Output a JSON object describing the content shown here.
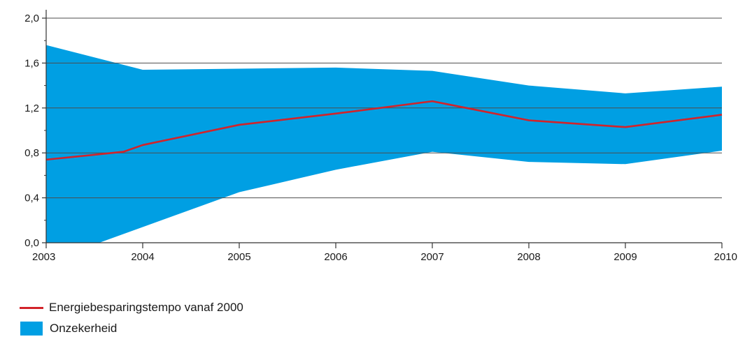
{
  "chart_data": {
    "type": "area",
    "x": [
      2003,
      2004,
      2005,
      2006,
      2007,
      2008,
      2009,
      2010
    ],
    "xticks": [
      "2003",
      "2004",
      "2005",
      "2006",
      "2007",
      "2008",
      "2009",
      "2010"
    ],
    "yticks": [
      "0,0",
      "0,4",
      "0,8",
      "1,2",
      "1,6",
      "2,0"
    ],
    "ylim": [
      0,
      2.0
    ],
    "xlim": [
      2003,
      2010
    ],
    "grid": "horizontal",
    "legend_position": "bottom-left",
    "series": [
      {
        "name": "Energiebesparingstempo vanaf 2000",
        "kind": "line",
        "color": "#d2232a",
        "points": [
          [
            2003,
            0.74
          ],
          [
            2003.8,
            0.81
          ],
          [
            2004,
            0.87
          ],
          [
            2005,
            1.05
          ],
          [
            2006,
            1.15
          ],
          [
            2007,
            1.26
          ],
          [
            2008,
            1.09
          ],
          [
            2009,
            1.03
          ],
          [
            2010,
            1.14
          ]
        ]
      },
      {
        "name": "Onzekerheid",
        "kind": "band",
        "color": "#009fe3",
        "upper": [
          [
            2003,
            1.76
          ],
          [
            2004,
            1.54
          ],
          [
            2005,
            1.55
          ],
          [
            2006,
            1.56
          ],
          [
            2007,
            1.53
          ],
          [
            2008,
            1.4
          ],
          [
            2009,
            1.33
          ],
          [
            2010,
            1.39
          ]
        ],
        "lower": [
          [
            2003,
            0.0
          ],
          [
            2003.55,
            0.0
          ],
          [
            2004,
            0.14
          ],
          [
            2005,
            0.45
          ],
          [
            2006,
            0.65
          ],
          [
            2007,
            0.81
          ],
          [
            2008,
            0.72
          ],
          [
            2009,
            0.7
          ],
          [
            2010,
            0.82
          ]
        ]
      }
    ]
  }
}
